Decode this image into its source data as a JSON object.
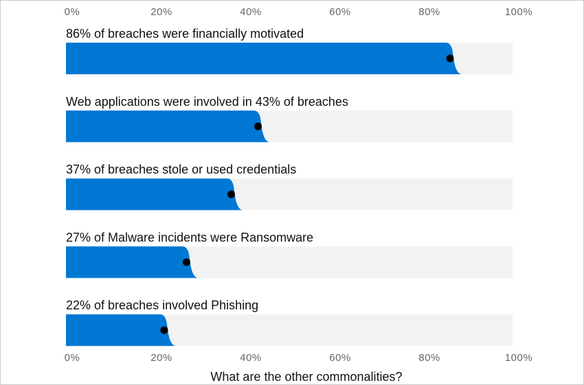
{
  "chart_data": {
    "type": "bar",
    "orientation": "horizontal",
    "title": "",
    "xlabel": "",
    "ylabel": "",
    "xlim": [
      0,
      100
    ],
    "tick_labels": [
      "0%",
      "20%",
      "40%",
      "60%",
      "80%",
      "100%"
    ],
    "grid": true,
    "categories": [
      "86% of breaches were financially motivated",
      "Web applications were involved in 43% of breaches",
      "37% of breaches stole or used credentials",
      "27% of Malware incidents were Ransomware",
      "22% of breaches involved Phishing"
    ],
    "values": [
      86,
      43,
      37,
      27,
      22
    ],
    "footer": "What are the other commonalities?",
    "colors": {
      "bar": "#0078d4",
      "track": "#f2f2f2",
      "dot": "#000000",
      "grid": "#cccccc",
      "tick_text": "#666666"
    }
  }
}
